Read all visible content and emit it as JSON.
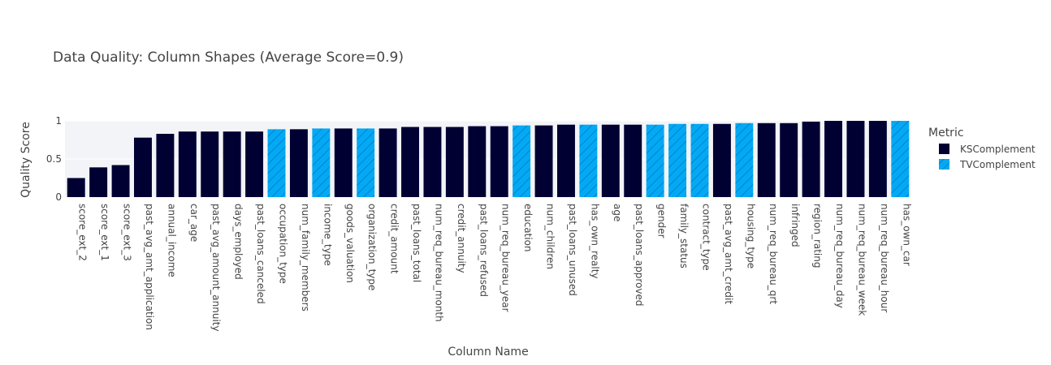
{
  "chart_data": {
    "type": "bar",
    "title": "Data Quality: Column Shapes (Average Score=0.9)",
    "xlabel": "Column Name",
    "ylabel": "Quality Score",
    "ylim": [
      0,
      1
    ],
    "yticks": [
      {
        "value": 0,
        "label": "0"
      },
      {
        "value": 0.5,
        "label": "0.5"
      },
      {
        "value": 1,
        "label": "1"
      }
    ],
    "legend": {
      "title": "Metric",
      "placement": "right",
      "entries": [
        {
          "name": "KSComplement",
          "color": "#000033",
          "pattern": "none"
        },
        {
          "name": "TVComplement",
          "color": "#03a9f4",
          "pattern": "diagonal-hatch"
        }
      ]
    },
    "categories": [
      "score_ext_2",
      "score_ext_1",
      "score_ext_3",
      "past_avg_amt_application",
      "annual_income",
      "car_age",
      "past_avg_amount_annuity",
      "days_employed",
      "past_loans_canceled",
      "occupation_type",
      "num_family_members",
      "income_type",
      "goods_valuation",
      "organization_type",
      "credit_amount",
      "past_loans_total",
      "num_req_bureau_month",
      "credit_annuity",
      "past_loans_refused",
      "num_req_bureau_year",
      "education",
      "num_children",
      "past_loans_unused",
      "has_own_realty",
      "age",
      "past_loans_approved",
      "gender",
      "family_status",
      "contract_type",
      "past_avg_amt_credit",
      "housing_type",
      "num_req_bureau_qrt",
      "infringed",
      "region_rating",
      "num_req_bureau_day",
      "num_req_bureau_week",
      "num_req_bureau_hour",
      "has_own_car"
    ],
    "values": [
      0.25,
      0.39,
      0.42,
      0.78,
      0.83,
      0.86,
      0.86,
      0.86,
      0.86,
      0.89,
      0.89,
      0.9,
      0.9,
      0.9,
      0.9,
      0.92,
      0.92,
      0.92,
      0.93,
      0.93,
      0.94,
      0.94,
      0.95,
      0.95,
      0.95,
      0.95,
      0.95,
      0.96,
      0.96,
      0.96,
      0.97,
      0.97,
      0.97,
      0.99,
      1.0,
      1.0,
      1.0,
      1.0
    ],
    "series_membership": [
      "KSComplement",
      "KSComplement",
      "KSComplement",
      "KSComplement",
      "KSComplement",
      "KSComplement",
      "KSComplement",
      "KSComplement",
      "KSComplement",
      "TVComplement",
      "KSComplement",
      "TVComplement",
      "KSComplement",
      "TVComplement",
      "KSComplement",
      "KSComplement",
      "KSComplement",
      "KSComplement",
      "KSComplement",
      "KSComplement",
      "TVComplement",
      "KSComplement",
      "KSComplement",
      "TVComplement",
      "KSComplement",
      "KSComplement",
      "TVComplement",
      "TVComplement",
      "TVComplement",
      "KSComplement",
      "TVComplement",
      "KSComplement",
      "KSComplement",
      "KSComplement",
      "KSComplement",
      "KSComplement",
      "KSComplement",
      "TVComplement"
    ],
    "grid": true,
    "colors": {
      "plot_bg": "#f3f4f8",
      "text": "#444444",
      "title": "#444444",
      "ks": "#000033",
      "tv": "#03a9f4"
    }
  }
}
